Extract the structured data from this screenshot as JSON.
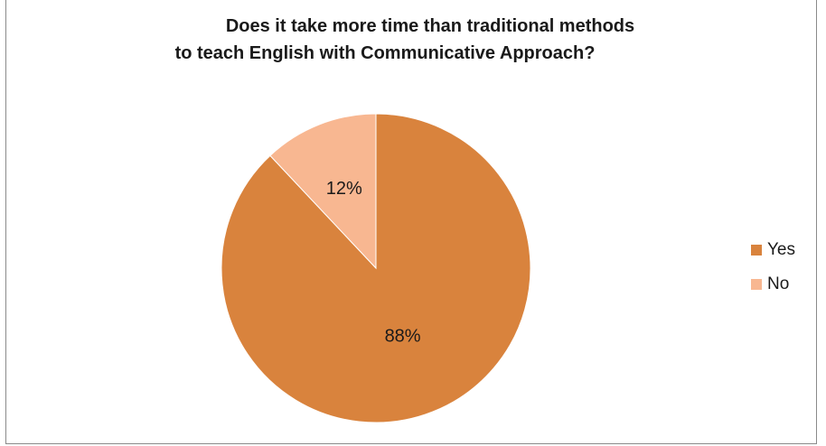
{
  "chart_data": {
    "type": "pie",
    "title_lines": [
      "Does it take more time than traditional methods",
      "to teach English with Communicative Approach?"
    ],
    "categories": [
      "Yes",
      "No"
    ],
    "values": [
      88,
      12
    ],
    "labels": [
      "88%",
      "12%"
    ],
    "colors": [
      "#D9833D",
      "#F8B791"
    ],
    "legend_position": "right",
    "start_angle_deg": 0,
    "direction": "clockwise"
  }
}
